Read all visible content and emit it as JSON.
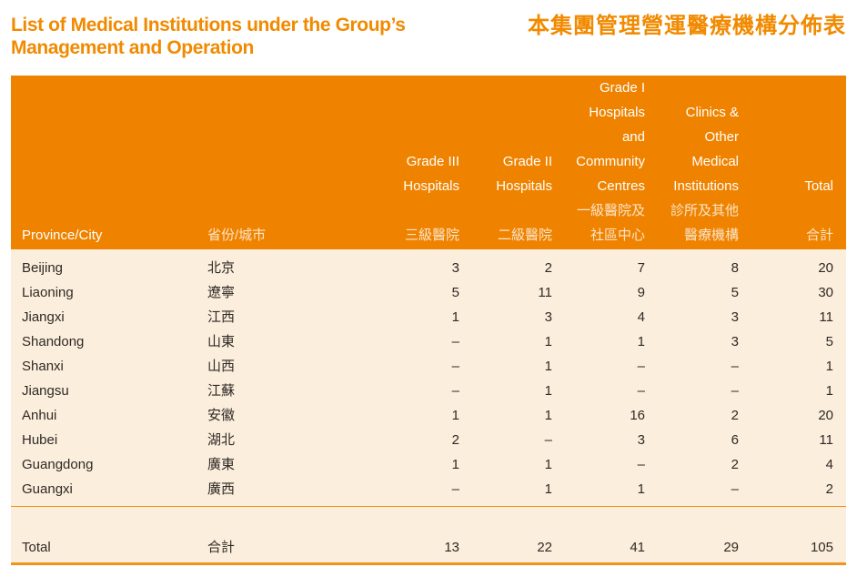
{
  "colors": {
    "title_orange": "#f18a00",
    "header_bg": "#ef8300",
    "body_bg": "#fceedc",
    "rule_orange": "#f0941c",
    "header_text": "#ffffff",
    "body_text": "#2e2a26"
  },
  "title": {
    "en_line1": "List of Medical Institutions under the Group’s",
    "en_line2": "Management and Operation",
    "zh": "本集團管理營運醫療機構分佈表"
  },
  "table": {
    "columns": [
      {
        "key": "province-city-en",
        "align": "left",
        "lines": [
          "Province/City"
        ]
      },
      {
        "key": "province-city-zh",
        "align": "left",
        "lines": [
          "省份/城市"
        ]
      },
      {
        "key": "grade-iii-hospitals",
        "align": "right",
        "lines": [
          "Grade III",
          "Hospitals",
          "",
          "三級醫院"
        ]
      },
      {
        "key": "grade-ii-hospitals",
        "align": "right",
        "lines": [
          "Grade II",
          "Hospitals",
          "",
          "二級醫院"
        ]
      },
      {
        "key": "grade-i-hospitals-community-centres",
        "align": "right",
        "lines": [
          "Grade I",
          "Hospitals",
          "and",
          "Community",
          "Centres",
          "一級醫院及",
          "社區中心"
        ]
      },
      {
        "key": "clinics-other-medical-institutions",
        "align": "right",
        "lines": [
          "Clinics &",
          "Other",
          "Medical",
          "Institutions",
          "診所及其他",
          "醫療機構"
        ]
      },
      {
        "key": "total",
        "align": "right",
        "lines": [
          "Total",
          "",
          "合計"
        ]
      }
    ],
    "rows": [
      {
        "en": "Beijing",
        "zh": "北京",
        "values": [
          "3",
          "2",
          "7",
          "8",
          "20"
        ]
      },
      {
        "en": "Liaoning",
        "zh": "遼寧",
        "values": [
          "5",
          "11",
          "9",
          "5",
          "30"
        ]
      },
      {
        "en": "Jiangxi",
        "zh": "江西",
        "values": [
          "1",
          "3",
          "4",
          "3",
          "11"
        ]
      },
      {
        "en": "Shandong",
        "zh": "山東",
        "values": [
          "–",
          "1",
          "1",
          "3",
          "5"
        ]
      },
      {
        "en": "Shanxi",
        "zh": "山西",
        "values": [
          "–",
          "1",
          "–",
          "–",
          "1"
        ]
      },
      {
        "en": "Jiangsu",
        "zh": "江蘇",
        "values": [
          "–",
          "1",
          "–",
          "–",
          "1"
        ]
      },
      {
        "en": "Anhui",
        "zh": "安徽",
        "values": [
          "1",
          "1",
          "16",
          "2",
          "20"
        ]
      },
      {
        "en": "Hubei",
        "zh": "湖北",
        "values": [
          "2",
          "–",
          "3",
          "6",
          "11"
        ]
      },
      {
        "en": "Guangdong",
        "zh": "廣東",
        "values": [
          "1",
          "1",
          "–",
          "2",
          "4"
        ]
      },
      {
        "en": "Guangxi",
        "zh": "廣西",
        "values": [
          "–",
          "1",
          "1",
          "–",
          "2"
        ]
      }
    ],
    "total_row": {
      "en": "Total",
      "zh": "合計",
      "values": [
        "13",
        "22",
        "41",
        "29",
        "105"
      ]
    }
  }
}
